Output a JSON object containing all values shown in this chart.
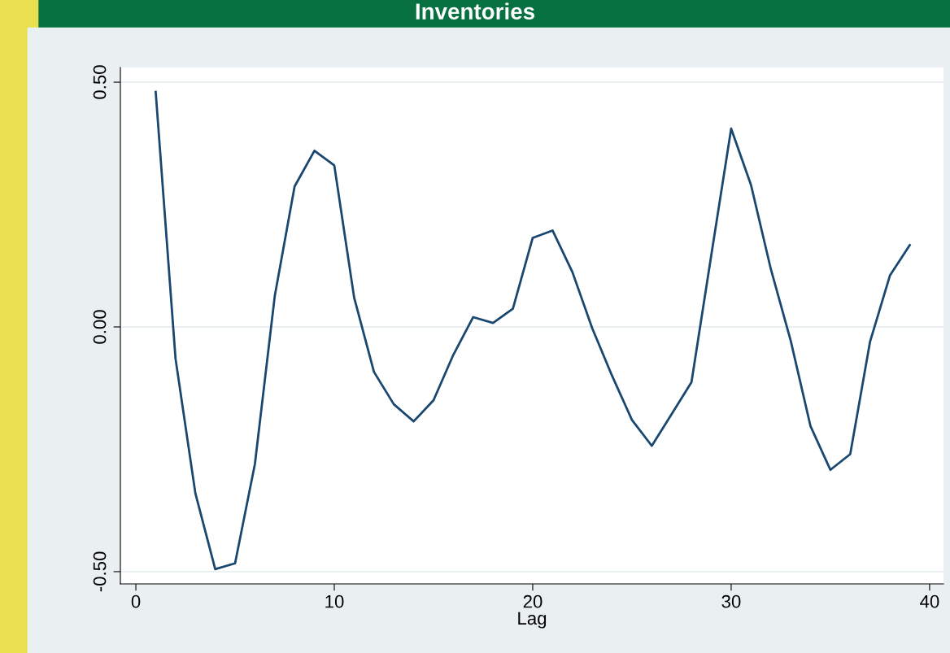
{
  "chart_data": {
    "type": "line",
    "title": "Inventories",
    "xlabel": "Lag",
    "x": [
      1,
      2,
      3,
      4,
      5,
      6,
      7,
      8,
      9,
      10,
      11,
      12,
      13,
      14,
      15,
      16,
      17,
      18,
      19,
      20,
      21,
      22,
      23,
      24,
      25,
      26,
      27,
      28,
      29,
      30,
      31,
      32,
      33,
      34,
      35,
      36,
      37,
      38,
      39
    ],
    "series": [
      {
        "color": "#1a476f",
        "values": [
          0.48,
          -0.065,
          -0.34,
          -0.495,
          -0.483,
          -0.28,
          0.063,
          0.287,
          0.36,
          0.33,
          0.06,
          -0.092,
          -0.158,
          -0.193,
          -0.15,
          -0.057,
          0.02,
          0.008,
          0.037,
          0.182,
          0.197,
          0.112,
          -0.003,
          -0.1,
          -0.19,
          -0.243,
          -0.178,
          -0.113,
          0.147,
          0.405,
          0.29,
          0.118,
          -0.028,
          -0.203,
          -0.292,
          -0.26,
          -0.03,
          0.105,
          0.167
        ]
      }
    ],
    "xlim": [
      -0.78,
      40.7
    ],
    "xticks": [
      0,
      10,
      20,
      30,
      40
    ],
    "ylim": [
      -0.525,
      0.53
    ],
    "yticks": [
      {
        "value": -0.5,
        "label": "-0.50"
      },
      {
        "value": 0,
        "label": "0.00"
      },
      {
        "value": 0.5,
        "label": "0.50"
      }
    ],
    "grid": "y",
    "legend": false,
    "marker": "none",
    "line_style": "solid"
  }
}
